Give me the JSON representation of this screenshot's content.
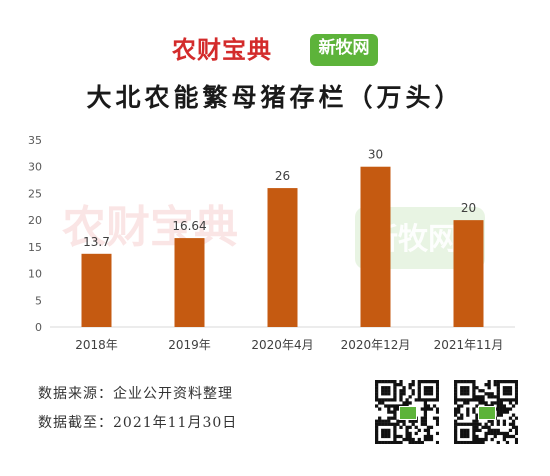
{
  "logos": {
    "brand_main": "农财宝典",
    "brand_secondary": "新牧网"
  },
  "title": "大北农能繁母猪存栏（万头）",
  "footer": {
    "source": "数据来源：企业公开资料整理",
    "cutoff": "数据截至：2021年11月30日"
  },
  "colors": {
    "bar": "#c55a11",
    "brand_red": "#d32b2b",
    "brand_green": "#5db33a"
  },
  "chart_data": {
    "type": "bar",
    "title": "大北农能繁母猪存栏（万头）",
    "categories": [
      "2018年",
      "2019年",
      "2020年4月",
      "2020年12月",
      "2021年11月"
    ],
    "values": [
      13.7,
      16.64,
      26,
      30,
      20
    ],
    "data_labels": [
      "13.7",
      "16.64",
      "26",
      "30",
      "20"
    ],
    "yticks": [
      "0",
      "5",
      "10",
      "15",
      "20",
      "25",
      "30",
      "35"
    ],
    "ylim": [
      0,
      35
    ],
    "grid": false,
    "legend": "none",
    "xlabel": "",
    "ylabel": ""
  }
}
